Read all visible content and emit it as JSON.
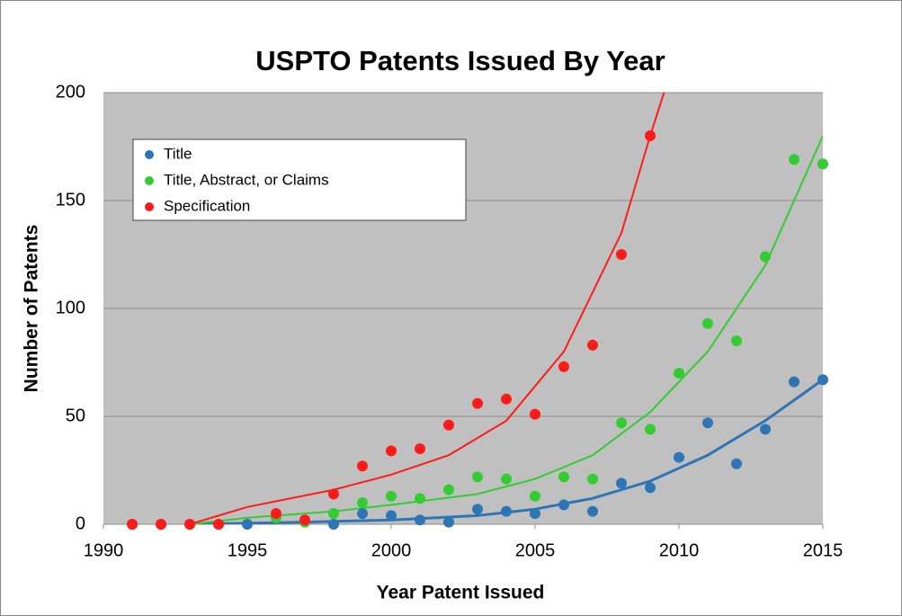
{
  "chart_data": {
    "type": "scatter",
    "title": "USPTO Patents Issued By Year",
    "x_label": "Year Patent Issued",
    "y_label": "Number of Patents",
    "x": [
      1991,
      1992,
      1993,
      1994,
      1995,
      1996,
      1997,
      1998,
      1999,
      2000,
      2001,
      2002,
      2003,
      2004,
      2005,
      2006,
      2007,
      2008,
      2009,
      2010,
      2011,
      2012,
      2013,
      2014,
      2015
    ],
    "series": [
      {
        "name": "Title",
        "color": "#2e75b6",
        "values": [
          0,
          0,
          0,
          0,
          0,
          null,
          null,
          0,
          5,
          4,
          2,
          1,
          7,
          6,
          5,
          9,
          6,
          19,
          17,
          31,
          47,
          28,
          44,
          66,
          67
        ]
      },
      {
        "name": "Title, Abstract, or Claims",
        "color": "#33cc33",
        "values": [
          null,
          null,
          null,
          null,
          null,
          3,
          1,
          5,
          10,
          13,
          12,
          16,
          22,
          21,
          13,
          22,
          21,
          47,
          44,
          70,
          93,
          85,
          124,
          169,
          167
        ]
      },
      {
        "name": "Specification",
        "color": "#ff1a1a",
        "values": [
          0,
          0,
          0,
          0,
          null,
          5,
          2,
          14,
          27,
          34,
          35,
          46,
          56,
          58,
          51,
          73,
          83,
          125,
          180,
          null,
          null,
          null,
          null,
          null,
          null
        ]
      }
    ],
    "trend_lines": [
      {
        "color": "#2e75b6",
        "x": [
          1993,
          1997,
          2000,
          2003,
          2005,
          2007,
          2009,
          2011,
          2013,
          2015
        ],
        "values": [
          0,
          1,
          2,
          4,
          7,
          12,
          20,
          32,
          48,
          67
        ]
      },
      {
        "color": "#33cc33",
        "x": [
          1993,
          1995,
          1998,
          2000,
          2003,
          2005,
          2007,
          2009,
          2011,
          2013,
          2015
        ],
        "values": [
          0,
          3,
          6,
          9,
          14,
          21,
          32,
          52,
          80,
          120,
          180
        ]
      },
      {
        "color": "#ff1a1a",
        "x": [
          1993,
          1995,
          1998,
          2000,
          2002,
          2004,
          2006,
          2008,
          2009,
          2009.6
        ],
        "values": [
          0,
          8,
          16,
          23,
          32,
          48,
          80,
          135,
          180,
          205
        ]
      }
    ],
    "xlim": [
      1990,
      2015
    ],
    "ylim": [
      0,
      200
    ],
    "xticks": [
      1990,
      1995,
      2000,
      2005,
      2010,
      2015
    ],
    "yticks": [
      0,
      50,
      100,
      150,
      200
    ],
    "grid": true,
    "legend": "upper left"
  }
}
